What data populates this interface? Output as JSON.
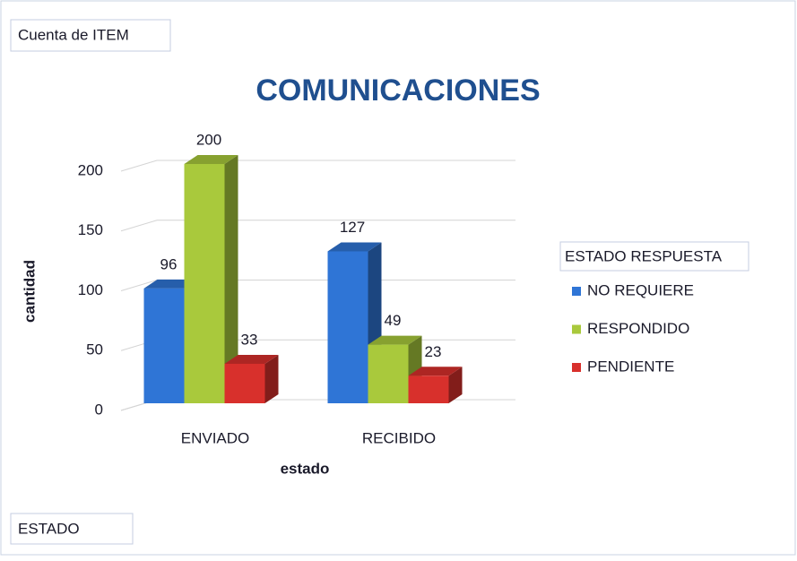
{
  "chart_data": {
    "type": "bar3d",
    "title": "COMUNICACIONES",
    "value_field_button": "Cuenta de ITEM",
    "axis_field_button": "ESTADO",
    "x_label": "estado",
    "y_label": "cantidad",
    "legend_title": "ESTADO RESPUESTA",
    "legend_position": "right",
    "categories": [
      "ENVIADO",
      "RECIBIDO"
    ],
    "series": [
      {
        "name": "NO REQUIERE",
        "color": "#2f75d6",
        "values": [
          96,
          127
        ]
      },
      {
        "name": "RESPONDIDO",
        "color": "#a9c93c",
        "values": [
          200,
          49
        ]
      },
      {
        "name": "PENDIENTE",
        "color": "#d8302c",
        "values": [
          33,
          23
        ]
      }
    ],
    "ylim": [
      0,
      200
    ],
    "yticks": [
      0,
      50,
      100,
      150,
      200
    ],
    "grid": true
  }
}
